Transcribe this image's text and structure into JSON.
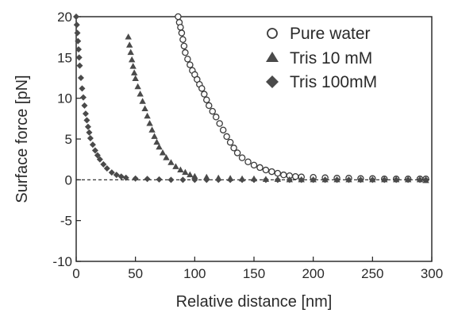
{
  "chart_data": {
    "type": "scatter",
    "xlabel": "Relative distance [nm]",
    "ylabel": "Surface force [pN]",
    "xlim": [
      0,
      300
    ],
    "ylim": [
      -10,
      20
    ],
    "xticks": [
      "0",
      "50",
      "100",
      "150",
      "200",
      "250",
      "300"
    ],
    "yticks": [
      "-10",
      "-5",
      "0",
      "5",
      "10",
      "15",
      "20"
    ],
    "grid": false,
    "zero_line": "dashed",
    "legend_position": "top-right",
    "series": [
      {
        "name": "Pure water",
        "marker": "circle-open",
        "x": [
          86,
          87,
          88,
          89,
          90,
          91,
          92,
          94,
          96,
          98,
          100,
          102,
          104,
          106,
          108,
          110,
          112,
          115,
          118,
          121,
          124,
          127,
          130,
          133,
          136,
          140,
          145,
          150,
          155,
          160,
          165,
          170,
          175,
          180,
          185,
          190,
          200,
          210,
          220,
          230,
          240,
          250,
          260,
          270,
          280,
          290,
          295
        ],
        "y": [
          20,
          19.3,
          18.7,
          18,
          17.2,
          16.4,
          15.6,
          14.8,
          14.1,
          13.4,
          12.9,
          12.3,
          11.7,
          11.2,
          10.5,
          9.8,
          9.1,
          8.4,
          7.7,
          6.9,
          6.1,
          5.3,
          4.6,
          3.9,
          3.3,
          2.7,
          2.2,
          1.8,
          1.5,
          1.2,
          1.0,
          0.8,
          0.6,
          0.5,
          0.4,
          0.35,
          0.3,
          0.25,
          0.2,
          0.2,
          0.15,
          0.15,
          0.1,
          0.1,
          0.1,
          0.1,
          0.1
        ]
      },
      {
        "name": "Tris 10 mM",
        "marker": "triangle-filled",
        "x": [
          44,
          45,
          46,
          47,
          48,
          49,
          50,
          52,
          54,
          56,
          58,
          60,
          62,
          64,
          66,
          68,
          70,
          73,
          76,
          80,
          84,
          88,
          92,
          96,
          100,
          110,
          120,
          130,
          140,
          150,
          160,
          170,
          180,
          190,
          200,
          210,
          220,
          230,
          240,
          250,
          260,
          270,
          280,
          290,
          295
        ],
        "y": [
          17.5,
          16.5,
          15.6,
          14.7,
          13.9,
          13.1,
          12.4,
          11.4,
          10.5,
          9.6,
          8.7,
          7.8,
          6.9,
          6.1,
          5.3,
          4.6,
          4.0,
          3.3,
          2.7,
          2.1,
          1.6,
          1.2,
          0.9,
          0.6,
          0.4,
          0.3,
          0.2,
          0.15,
          0.1,
          0.1,
          0.05,
          0.05,
          0.0,
          0.0,
          0.0,
          0.0,
          0.0,
          0.0,
          0.0,
          0.0,
          0.0,
          0.0,
          0.0,
          0.0,
          -0.1
        ]
      },
      {
        "name": "Tris 100mM",
        "marker": "diamond-filled",
        "x": [
          0,
          0.5,
          1,
          1.5,
          2,
          2.5,
          3,
          4,
          5,
          6,
          7,
          8,
          9,
          10,
          11,
          12,
          14,
          16,
          18,
          20,
          23,
          26,
          30,
          34,
          38,
          42,
          50,
          60,
          70,
          80,
          90,
          100,
          110,
          120,
          130,
          140,
          150,
          160,
          170,
          180,
          190,
          200,
          210,
          220,
          230,
          240,
          250,
          260,
          270,
          280,
          290,
          295
        ],
        "y": [
          20,
          19,
          18,
          17,
          16,
          15,
          14,
          12.5,
          11.2,
          10.1,
          9.1,
          8.1,
          7.3,
          6.5,
          5.8,
          5.1,
          4.3,
          3.6,
          3.0,
          2.5,
          1.9,
          1.4,
          0.9,
          0.6,
          0.4,
          0.25,
          0.15,
          0.1,
          0.05,
          0.0,
          0.0,
          0.0,
          0.0,
          0.0,
          0.0,
          0.0,
          0.0,
          0.0,
          0.0,
          0.0,
          0.0,
          0.0,
          0.0,
          0.0,
          0.0,
          0.0,
          0.0,
          0.0,
          0.0,
          0.0,
          0.0,
          0.0
        ]
      }
    ]
  },
  "colors": {
    "marker_fill": "#4a4a4a",
    "marker_stroke": "#3a3a3a",
    "axis": "#1e1e1e",
    "background": "#ffffff"
  }
}
